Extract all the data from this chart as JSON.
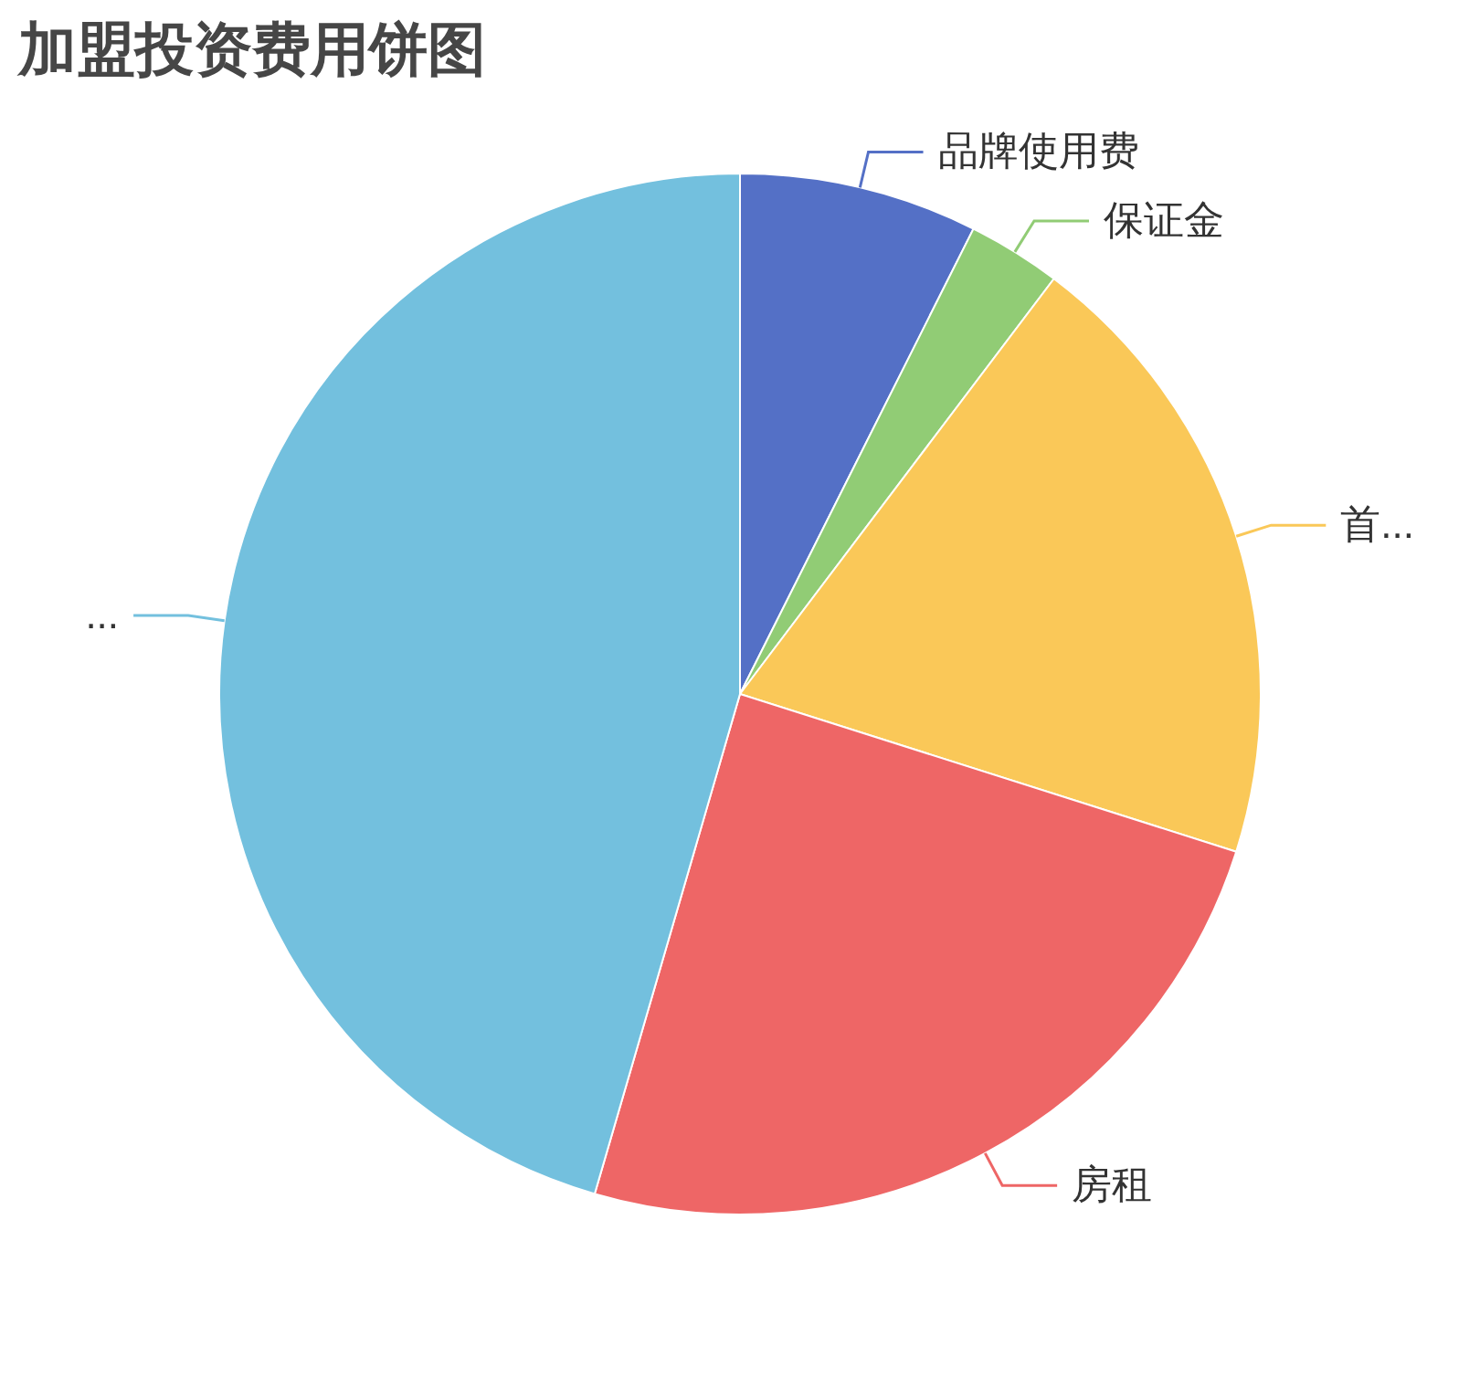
{
  "chart_data": {
    "type": "pie",
    "title": "加盟投资费用饼图",
    "categories": [
      "品牌使用费",
      "保证金",
      "首...",
      "房租",
      "..."
    ],
    "values": [
      7.4,
      2.9,
      19.6,
      24.6,
      45.5
    ],
    "colors": [
      "#5470c6",
      "#91cc75",
      "#fac858",
      "#ee6666",
      "#73c0de"
    ]
  }
}
